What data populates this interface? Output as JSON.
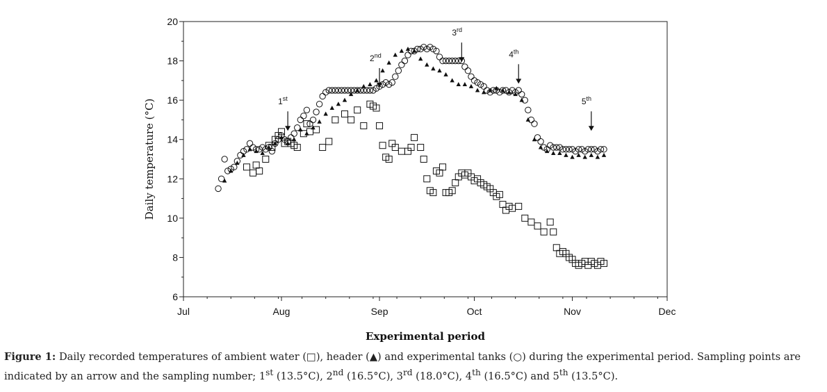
{
  "chart_data": {
    "type": "scatter",
    "title": "",
    "xlabel": "Experimental period",
    "ylabel": "Daily temperature (°C)",
    "ylim": [
      6,
      20
    ],
    "xlim": [
      0,
      153
    ],
    "x_unit": "days since Jul 1",
    "x_ticks": [
      {
        "label": "Jul",
        "x": 0
      },
      {
        "label": "Aug",
        "x": 31
      },
      {
        "label": "Sep",
        "x": 62
      },
      {
        "label": "Oct",
        "x": 92
      },
      {
        "label": "Nov",
        "x": 123
      },
      {
        "label": "Dec",
        "x": 153
      }
    ],
    "y_ticks": [
      6,
      8,
      10,
      12,
      14,
      16,
      18,
      20
    ],
    "legend": [
      {
        "name": "ambient water",
        "marker": "□"
      },
      {
        "name": "header",
        "marker": "▲"
      },
      {
        "name": "experimental tanks",
        "marker": "○"
      }
    ],
    "series": [
      {
        "name": "ambient water",
        "marker": "square",
        "x": [
          20,
          22,
          23,
          24,
          26,
          27,
          28,
          29,
          30,
          31,
          32,
          33,
          34,
          35,
          36,
          38,
          39,
          40,
          42,
          44,
          46,
          48,
          51,
          53,
          55,
          57,
          59,
          60,
          61,
          62,
          63,
          64,
          65,
          66,
          67,
          69,
          71,
          72,
          73,
          75,
          76,
          77,
          78,
          79,
          80,
          81,
          82,
          83,
          84,
          85,
          86,
          87,
          88,
          89,
          90,
          91,
          92,
          93,
          94,
          95,
          96,
          97,
          98,
          99,
          100,
          101,
          102,
          103,
          104,
          106,
          108,
          110,
          112,
          114,
          116,
          117,
          118,
          119,
          120,
          121,
          122,
          123,
          124,
          125,
          126,
          127,
          128,
          129,
          130,
          131,
          132,
          133
        ],
        "y": [
          12.6,
          12.3,
          12.7,
          12.4,
          13.0,
          13.7,
          13.6,
          14.0,
          14.2,
          14.4,
          13.8,
          13.9,
          13.8,
          13.7,
          13.6,
          14.3,
          14.8,
          14.4,
          14.5,
          13.6,
          13.9,
          15.0,
          15.3,
          15.0,
          15.5,
          14.7,
          15.8,
          15.7,
          15.6,
          14.7,
          13.7,
          13.1,
          13.0,
          13.8,
          13.6,
          13.4,
          13.4,
          13.6,
          14.1,
          13.6,
          13.0,
          12.0,
          11.4,
          11.3,
          12.4,
          12.3,
          12.6,
          11.3,
          11.3,
          11.4,
          11.8,
          12.1,
          12.3,
          12.2,
          12.3,
          12.1,
          11.9,
          12.0,
          11.8,
          11.7,
          11.6,
          11.5,
          11.3,
          11.1,
          11.2,
          10.7,
          10.4,
          10.6,
          10.5,
          10.6,
          10.0,
          9.8,
          9.6,
          9.3,
          9.8,
          9.3,
          8.5,
          8.2,
          8.3,
          8.2,
          8.0,
          7.9,
          7.7,
          7.6,
          7.7,
          7.8,
          7.6,
          7.8,
          7.7,
          7.6,
          7.8,
          7.7
        ],
        "note": "values read from the plot; the listed points are an approximation"
      },
      {
        "name": "header",
        "marker": "triangle",
        "x": [
          13,
          15,
          17,
          19,
          21,
          23,
          25,
          27,
          29,
          31,
          33,
          35,
          37,
          39,
          41,
          43,
          45,
          47,
          49,
          51,
          53,
          55,
          57,
          59,
          61,
          63,
          65,
          67,
          69,
          71,
          73,
          75,
          77,
          79,
          81,
          83,
          85,
          87,
          89,
          91,
          93,
          95,
          97,
          99,
          101,
          103,
          105,
          107,
          109,
          111,
          113,
          115,
          117,
          119,
          121,
          123,
          125,
          127,
          129,
          131,
          133
        ],
        "y": [
          11.9,
          12.4,
          12.8,
          13.2,
          13.5,
          13.4,
          13.3,
          13.6,
          13.8,
          14.1,
          13.8,
          14.0,
          14.5,
          14.3,
          14.6,
          14.9,
          15.3,
          15.6,
          15.8,
          16.0,
          16.3,
          16.5,
          16.7,
          16.8,
          17.0,
          17.5,
          17.9,
          18.3,
          18.5,
          18.6,
          18.5,
          18.1,
          17.8,
          17.6,
          17.5,
          17.3,
          17.0,
          16.8,
          16.8,
          16.7,
          16.5,
          16.4,
          16.5,
          16.6,
          16.5,
          16.4,
          16.3,
          16.0,
          15.0,
          14.0,
          13.6,
          13.4,
          13.3,
          13.3,
          13.2,
          13.1,
          13.2,
          13.1,
          13.2,
          13.1,
          13.2
        ]
      },
      {
        "name": "experimental tanks",
        "marker": "circle",
        "x": [
          11,
          12,
          13,
          14,
          15,
          16,
          17,
          18,
          19,
          20,
          21,
          22,
          23,
          24,
          25,
          26,
          27,
          28,
          29,
          30,
          31,
          32,
          33,
          34,
          35,
          36,
          37,
          38,
          39,
          40,
          41,
          42,
          43,
          44,
          45,
          46,
          47,
          48,
          49,
          50,
          51,
          52,
          53,
          54,
          55,
          56,
          57,
          58,
          59,
          60,
          61,
          62,
          63,
          64,
          65,
          66,
          67,
          68,
          69,
          70,
          71,
          72,
          73,
          74,
          75,
          76,
          77,
          78,
          79,
          80,
          81,
          82,
          83,
          84,
          85,
          86,
          87,
          88,
          89,
          90,
          91,
          92,
          93,
          94,
          95,
          96,
          97,
          98,
          99,
          100,
          101,
          102,
          103,
          104,
          105,
          106,
          107,
          108,
          109,
          110,
          111,
          112,
          113,
          114,
          115,
          116,
          117,
          118,
          119,
          120,
          121,
          122,
          123,
          124,
          125,
          126,
          127,
          128,
          129,
          130,
          131,
          132,
          133
        ],
        "y": [
          11.5,
          12.0,
          13.0,
          12.4,
          12.5,
          12.6,
          12.9,
          13.2,
          13.4,
          13.5,
          13.8,
          13.6,
          13.5,
          13.5,
          13.6,
          13.5,
          13.6,
          13.4,
          13.8,
          14.0,
          14.2,
          14.0,
          13.9,
          14.1,
          14.3,
          14.6,
          15.0,
          15.2,
          15.5,
          14.8,
          15.0,
          15.4,
          15.8,
          16.2,
          16.4,
          16.5,
          16.5,
          16.5,
          16.5,
          16.5,
          16.5,
          16.5,
          16.5,
          16.5,
          16.5,
          16.5,
          16.5,
          16.5,
          16.5,
          16.5,
          16.6,
          16.7,
          16.8,
          16.9,
          16.8,
          16.9,
          17.2,
          17.5,
          17.8,
          18.0,
          18.3,
          18.5,
          18.5,
          18.6,
          18.6,
          18.7,
          18.6,
          18.7,
          18.6,
          18.5,
          18.2,
          18.0,
          18.0,
          18.0,
          18.0,
          18.0,
          18.0,
          18.0,
          17.7,
          17.5,
          17.2,
          17.0,
          16.9,
          16.8,
          16.7,
          16.5,
          16.4,
          16.5,
          16.5,
          16.4,
          16.5,
          16.5,
          16.4,
          16.5,
          16.4,
          16.5,
          16.3,
          16.0,
          15.5,
          15.0,
          14.8,
          14.1,
          13.9,
          13.6,
          13.5,
          13.7,
          13.6,
          13.6,
          13.6,
          13.5,
          13.5,
          13.5,
          13.5,
          13.4,
          13.5,
          13.5,
          13.4,
          13.5,
          13.5,
          13.5,
          13.4,
          13.5,
          13.5
        ]
      }
    ],
    "annotations": [
      {
        "label": "1",
        "sup": "st",
        "x": 33,
        "arrow_tip": 14.3
      },
      {
        "label": "2",
        "sup": "nd",
        "x": 62,
        "arrow_tip": 16.5
      },
      {
        "label": "3",
        "sup": "rd",
        "x": 88,
        "arrow_tip": 17.8
      },
      {
        "label": "4",
        "sup": "th",
        "x": 106,
        "arrow_tip": 16.7
      },
      {
        "label": "5",
        "sup": "th",
        "x": 129,
        "arrow_tip": 14.3
      }
    ]
  },
  "caption": {
    "label": "Figure 1:",
    "text_a": " Daily recorded temperatures of ambient water (",
    "sym_a": "□",
    "text_b": "), header (",
    "sym_b": "▲",
    "text_c": ") and experimental tanks (",
    "sym_c": "○",
    "text_d": ") during the experimental period. Sampling points are indicated by an arrow and the sampling number; 1",
    "sup1": "st",
    "text_e": " (13.5°C), 2",
    "sup2": "nd",
    "text_f": " (16.5°C), 3",
    "sup3": "rd",
    "text_g": " (18.0°C), 4",
    "sup4": "th",
    "text_h": " (16.5°C) and 5",
    "sup5": "th",
    "text_i": " (13.5°C)."
  }
}
